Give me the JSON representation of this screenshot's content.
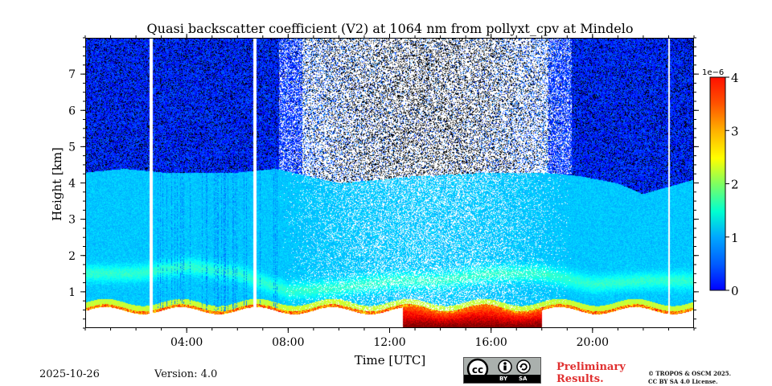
{
  "chart_data": {
    "type": "heatmap",
    "title": "Quasi backscatter coefficient (V2) at 1064 nm from pollyxt_cpv at Mindelo",
    "xlabel": "Time [UTC]",
    "ylabel": "Height [km]",
    "xlim": [
      0,
      24
    ],
    "ylim": [
      0,
      8
    ],
    "x_ticks": [
      {
        "value": 4,
        "label": "04:00"
      },
      {
        "value": 8,
        "label": "08:00"
      },
      {
        "value": 12,
        "label": "12:00"
      },
      {
        "value": 16,
        "label": "16:00"
      },
      {
        "value": 20,
        "label": "20:00"
      }
    ],
    "y_ticks": [
      {
        "value": 1,
        "label": "1"
      },
      {
        "value": 2,
        "label": "2"
      },
      {
        "value": 3,
        "label": "3"
      },
      {
        "value": 4,
        "label": "4"
      },
      {
        "value": 5,
        "label": "5"
      },
      {
        "value": 6,
        "label": "6"
      },
      {
        "value": 7,
        "label": "7"
      }
    ],
    "colorbar": {
      "min": 0,
      "max": 4,
      "scale_label": "1e−6",
      "colormap": "jet",
      "ticks": [
        {
          "value": 0,
          "label": "0"
        },
        {
          "value": 1,
          "label": "1"
        },
        {
          "value": 2,
          "label": "2"
        },
        {
          "value": 3,
          "label": "3"
        },
        {
          "value": 4,
          "label": "4"
        }
      ]
    },
    "features": {
      "boundary_layer_top_km": [
        {
          "time": 0,
          "height": 4.3
        },
        {
          "time": 1.5,
          "height": 4.4
        },
        {
          "time": 3,
          "height": 4.3
        },
        {
          "time": 6,
          "height": 4.3
        },
        {
          "time": 7.5,
          "height": 4.4
        },
        {
          "time": 10,
          "height": 4.0
        },
        {
          "time": 13,
          "height": 4.2
        },
        {
          "time": 16,
          "height": 4.3
        },
        {
          "time": 18,
          "height": 4.3
        },
        {
          "time": 19.5,
          "height": 4.2
        },
        {
          "time": 21,
          "height": 4.0
        },
        {
          "time": 22,
          "height": 3.7
        },
        {
          "time": 24,
          "height": 4.1
        }
      ],
      "aerosol_layer_km": [
        {
          "time": 0,
          "height": 1.5
        },
        {
          "time": 2,
          "height": 1.5
        },
        {
          "time": 4,
          "height": 1.7
        },
        {
          "time": 6,
          "height": 1.5
        },
        {
          "time": 8,
          "height": 1.0
        },
        {
          "time": 10,
          "height": 1.1
        },
        {
          "time": 12,
          "height": 1.3
        },
        {
          "time": 14,
          "height": 1.3
        },
        {
          "time": 16,
          "height": 1.5
        },
        {
          "time": 18,
          "height": 1.5
        },
        {
          "time": 20,
          "height": 1.2
        },
        {
          "time": 22,
          "height": 1.3
        },
        {
          "time": 24,
          "height": 1.3
        }
      ],
      "no_data_gaps_utc": [
        [
          2.5,
          2.62
        ],
        [
          6.6,
          6.72
        ],
        [
          23.0,
          23.05
        ]
      ],
      "high_backscatter_period_utc": [
        12.5,
        18.0
      ]
    }
  },
  "footer": {
    "date": "2025-10-26",
    "version": "Version: 4.0",
    "cc_by": "BY",
    "cc_sa": "SA",
    "preliminary_line1": "Preliminary",
    "preliminary_line2": "Results.",
    "license_line1": "© TROPOS & OSCM 2025.",
    "license_line2": "CC BY SA 4.0 License."
  }
}
